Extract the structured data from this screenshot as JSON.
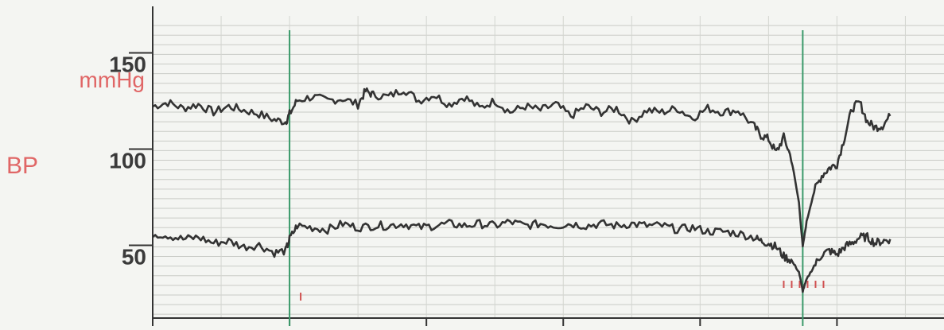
{
  "chart_data": {
    "type": "line",
    "ylabel": "BP",
    "yunit": "mmHg",
    "ylim": [
      18,
      175
    ],
    "yticks": [
      {
        "value": 150,
        "label": "150"
      },
      {
        "value": 100,
        "label": "100"
      },
      {
        "value": 50,
        "label": "50"
      }
    ],
    "xlim": [
      0,
      100
    ],
    "grid": true,
    "event_markers_x": [
      18,
      85.5
    ],
    "series": [
      {
        "color": "#333333",
        "x": [
          0,
          2,
          4,
          6,
          8,
          10,
          12,
          14,
          16,
          17.5,
          18,
          19,
          21,
          23,
          25,
          27,
          28,
          29,
          31,
          33,
          35,
          37,
          39,
          41,
          43,
          45,
          47,
          49,
          51,
          53,
          55,
          57,
          59,
          61,
          63,
          65,
          67,
          69,
          71,
          73,
          75,
          77,
          79,
          80,
          81,
          82,
          83,
          84,
          85,
          85.5,
          86,
          87,
          88,
          89,
          90,
          91,
          92,
          93,
          94,
          95,
          96,
          97
        ],
        "values": [
          128,
          130,
          127,
          129,
          125,
          128,
          126,
          124,
          121,
          120,
          124,
          131,
          133,
          131,
          132,
          129,
          136,
          134,
          133,
          137,
          131,
          134,
          129,
          133,
          127,
          131,
          125,
          128,
          126,
          129,
          123,
          128,
          125,
          127,
          120,
          126,
          125,
          127,
          122,
          127,
          125,
          126,
          118,
          113,
          111,
          104,
          112,
          101,
          78,
          55,
          68,
          84,
          92,
          96,
          98,
          112,
          127,
          130,
          120,
          117,
          118,
          123
        ]
      },
      {
        "color": "#333333",
        "x": [
          0,
          2,
          4,
          6,
          8,
          10,
          12,
          14,
          16,
          17.5,
          18,
          19,
          21,
          23,
          25,
          27,
          29,
          31,
          33,
          35,
          37,
          39,
          41,
          43,
          45,
          47,
          49,
          51,
          53,
          55,
          57,
          59,
          61,
          63,
          65,
          67,
          69,
          71,
          73,
          75,
          77,
          79,
          80,
          81,
          82,
          83,
          84,
          85,
          85.5,
          86,
          87,
          88,
          89,
          90,
          91,
          92,
          93,
          94,
          95,
          96,
          97
        ],
        "values": [
          62,
          61,
          59,
          60,
          57,
          58,
          55,
          56,
          52,
          53,
          59,
          66,
          65,
          64,
          67,
          65,
          66,
          66,
          67,
          65,
          66,
          67,
          66,
          67,
          66,
          68,
          66,
          67,
          66,
          67,
          66,
          67,
          66,
          67,
          66,
          66,
          64,
          65,
          63,
          63,
          62,
          60,
          58,
          57,
          55,
          50,
          48,
          42,
          32,
          38,
          45,
          51,
          53,
          51,
          55,
          57,
          60,
          60,
          57,
          58,
          59
        ]
      }
    ]
  }
}
